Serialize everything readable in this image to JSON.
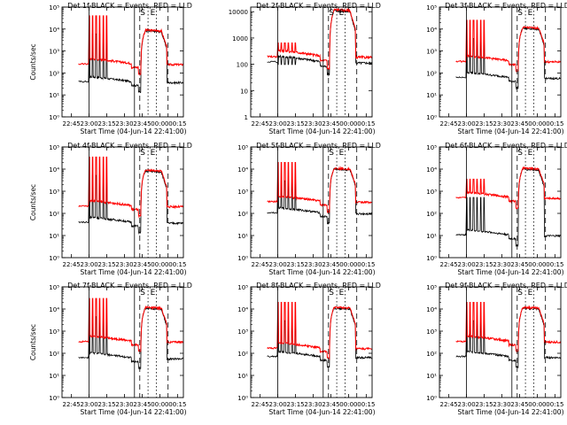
{
  "chart_data": [
    {
      "type": "line",
      "title": "Det 1f-BLACK = Events, RED = LLD",
      "xlabel": "Start Time (04-Jun-14 22:41:00)",
      "ylabel": "Counts/sec",
      "yscale": "log",
      "y_ticks": [
        "10⁰",
        "10¹",
        "10²",
        "10³",
        "10⁴",
        "10⁵"
      ],
      "x_ticks": [
        "22:45",
        "23:00",
        "23:15",
        "23:30",
        "23:45",
        "00:00",
        "00:15"
      ],
      "ylim": [
        1,
        100000
      ],
      "base_black": 45,
      "base_red": 300,
      "spike_red": 40000,
      "peak": 9000,
      "markers": [
        "S",
        "E"
      ],
      "series": [
        {
          "name": "BLACK = Events",
          "color": "#000000"
        },
        {
          "name": "RED = LLD",
          "color": "#ff0000"
        }
      ]
    },
    {
      "type": "line",
      "title": "Det 2f-BLACK = Events, RED = LLD",
      "xlabel": "Start Time (04-Jun-14 22:41:00)",
      "ylabel": "",
      "yscale": "log",
      "y_ticks": [
        "1",
        "10",
        "100",
        "1000",
        "10000"
      ],
      "x_ticks": [
        "22:45",
        "23:00",
        "23:15",
        "23:30",
        "23:45",
        "00:00",
        "00:15"
      ],
      "ylim": [
        1,
        15000
      ],
      "base_black": 140,
      "base_red": 230,
      "spike_red": 650,
      "peak": 12000,
      "markers": [
        "S",
        "E"
      ],
      "series": [
        {
          "name": "BLACK = Events",
          "color": "#000000"
        },
        {
          "name": "RED = LLD",
          "color": "#ff0000"
        }
      ]
    },
    {
      "type": "line",
      "title": "Det 3f-BLACK = Events, RED = LLD",
      "xlabel": "Start Time (04-Jun-14 22:41:00)",
      "ylabel": "",
      "yscale": "log",
      "y_ticks": [
        "10⁰",
        "10¹",
        "10²",
        "10³",
        "10⁴",
        "10⁵"
      ],
      "x_ticks": [
        "22:45",
        "23:00",
        "23:15",
        "23:30",
        "23:45",
        "00:00",
        "00:15"
      ],
      "ylim": [
        1,
        100000
      ],
      "base_black": 70,
      "base_red": 400,
      "spike_red": 25000,
      "peak": 12000,
      "markers": [
        "S",
        "E"
      ],
      "series": [
        {
          "name": "BLACK = Events",
          "color": "#000000"
        },
        {
          "name": "RED = LLD",
          "color": "#ff0000"
        }
      ]
    },
    {
      "type": "line",
      "title": "Det 4f-BLACK = Events, RED = LLD",
      "xlabel": "Start Time (04-Jun-14 22:41:00)",
      "ylabel": "Counts/sec",
      "yscale": "log",
      "y_ticks": [
        "10⁰",
        "10¹",
        "10²",
        "10³",
        "10⁴",
        "10⁵"
      ],
      "x_ticks": [
        "22:45",
        "23:00",
        "23:15",
        "23:30",
        "23:45",
        "00:00",
        "00:15"
      ],
      "ylim": [
        1,
        100000
      ],
      "base_black": 45,
      "base_red": 250,
      "spike_red": 35000,
      "peak": 9000,
      "markers": [
        "S",
        "E"
      ],
      "series": [
        {
          "name": "BLACK = Events",
          "color": "#000000"
        },
        {
          "name": "RED = LLD",
          "color": "#ff0000"
        }
      ]
    },
    {
      "type": "line",
      "title": "Det 5f-BLACK = Events, RED = LLD",
      "xlabel": "Start Time (04-Jun-14 22:41:00)",
      "ylabel": "",
      "yscale": "log",
      "y_ticks": [
        "10⁰",
        "10¹",
        "10²",
        "10³",
        "10⁴",
        "10⁵"
      ],
      "x_ticks": [
        "22:45",
        "23:00",
        "23:15",
        "23:30",
        "23:45",
        "00:00",
        "00:15"
      ],
      "ylim": [
        1,
        100000
      ],
      "base_black": 120,
      "base_red": 400,
      "spike_red": 20000,
      "peak": 11000,
      "markers": [
        "S",
        "E"
      ],
      "series": [
        {
          "name": "BLACK = Events",
          "color": "#000000"
        },
        {
          "name": "RED = LLD",
          "color": "#ff0000"
        }
      ]
    },
    {
      "type": "line",
      "title": "Det 6f-BLACK = Events, RED = LLD",
      "xlabel": "Start Time (04-Jun-14 22:41:00)",
      "ylabel": "",
      "yscale": "log",
      "y_ticks": [
        "10⁰",
        "10¹",
        "10²",
        "10³",
        "10⁴",
        "10⁵"
      ],
      "x_ticks": [
        "22:45",
        "23:00",
        "23:15",
        "23:30",
        "23:45",
        "00:00",
        "00:15"
      ],
      "ylim": [
        1,
        100000
      ],
      "base_black": 12,
      "base_red": 600,
      "spike_red": 3500,
      "peak": 11000,
      "markers": [
        "S",
        "E"
      ],
      "series": [
        {
          "name": "BLACK = Events",
          "color": "#000000"
        },
        {
          "name": "RED = LLD",
          "color": "#ff0000"
        }
      ]
    },
    {
      "type": "line",
      "title": "Det 7f-BLACK = Events, RED = LLD",
      "xlabel": "Start Time (04-Jun-14 22:41:00)",
      "ylabel": "Counts/sec",
      "yscale": "log",
      "y_ticks": [
        "10⁰",
        "10¹",
        "10²",
        "10³",
        "10⁴",
        "10⁵"
      ],
      "x_ticks": [
        "22:45",
        "23:00",
        "23:15",
        "23:30",
        "23:45",
        "00:00",
        "00:15"
      ],
      "ylim": [
        1,
        100000
      ],
      "base_black": 70,
      "base_red": 400,
      "spike_red": 30000,
      "peak": 12000,
      "markers": [
        "S",
        "E"
      ],
      "series": [
        {
          "name": "BLACK = Events",
          "color": "#000000"
        },
        {
          "name": "RED = LLD",
          "color": "#ff0000"
        }
      ]
    },
    {
      "type": "line",
      "title": "Det 8f-BLACK = Events, RED = LLD",
      "xlabel": "Start Time (04-Jun-14 22:41:00)",
      "ylabel": "",
      "yscale": "log",
      "y_ticks": [
        "10⁰",
        "10¹",
        "10²",
        "10³",
        "10⁴",
        "10⁵"
      ],
      "x_ticks": [
        "22:45",
        "23:00",
        "23:15",
        "23:30",
        "23:45",
        "00:00",
        "00:15"
      ],
      "ylim": [
        1,
        100000
      ],
      "base_black": 80,
      "base_red": 200,
      "spike_red": 20000,
      "peak": 12000,
      "markers": [
        "S",
        "E"
      ],
      "series": [
        {
          "name": "BLACK = Events",
          "color": "#000000"
        },
        {
          "name": "RED = LLD",
          "color": "#ff0000"
        }
      ]
    },
    {
      "type": "line",
      "title": "Det 9f-BLACK = Events, RED = LLD",
      "xlabel": "Start Time (04-Jun-14 22:41:00)",
      "ylabel": "",
      "yscale": "log",
      "y_ticks": [
        "10⁰",
        "10¹",
        "10²",
        "10³",
        "10⁴",
        "10⁵"
      ],
      "x_ticks": [
        "22:45",
        "23:00",
        "23:15",
        "23:30",
        "23:45",
        "00:00",
        "00:15"
      ],
      "ylim": [
        1,
        100000
      ],
      "base_black": 80,
      "base_red": 400,
      "spike_red": 20000,
      "peak": 12000,
      "markers": [
        "S",
        "E"
      ],
      "series": [
        {
          "name": "BLACK = Events",
          "color": "#000000"
        },
        {
          "name": "RED = LLD",
          "color": "#ff0000"
        }
      ]
    }
  ]
}
